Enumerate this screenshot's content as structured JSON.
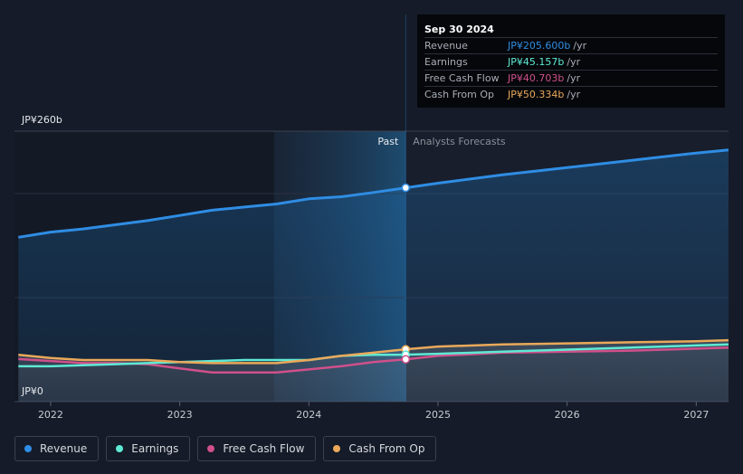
{
  "chart_data": {
    "type": "line",
    "title": "",
    "currency_unit": "JP¥",
    "y_top_label": "JP¥260b",
    "y_bottom_label": "JP¥0",
    "ylim": [
      0,
      260
    ],
    "xlim": [
      2021.72,
      2027.25
    ],
    "x_ticks": [
      "2022",
      "2023",
      "2024",
      "2025",
      "2026",
      "2027"
    ],
    "x_tick_values": [
      2022,
      2023,
      2024,
      2025,
      2026,
      2027
    ],
    "region_labels": {
      "past": "Past",
      "forecast": "Analysts Forecasts"
    },
    "past_start": 2023.73,
    "divider_x": 2024.75,
    "colors": {
      "revenue": "#2f8de4",
      "earnings": "#5eead4",
      "free_cash_flow": "#d0508a",
      "cash_from_op": "#eaa95a"
    },
    "series": [
      {
        "name": "Revenue",
        "key": "revenue",
        "x": [
          2021.75,
          2022.0,
          2022.25,
          2022.5,
          2022.75,
          2023.0,
          2023.25,
          2023.5,
          2023.75,
          2024.0,
          2024.25,
          2024.5,
          2024.75,
          2025.0,
          2025.5,
          2026.0,
          2026.5,
          2027.0,
          2027.25
        ],
        "values": [
          158,
          163,
          166,
          170,
          174,
          179,
          184,
          187,
          190,
          195,
          197,
          201,
          205.6,
          210,
          218,
          225,
          232,
          239,
          242
        ]
      },
      {
        "name": "Earnings",
        "key": "earnings",
        "x": [
          2021.75,
          2022.0,
          2022.25,
          2022.5,
          2022.75,
          2023.0,
          2023.25,
          2023.5,
          2023.75,
          2024.0,
          2024.25,
          2024.5,
          2024.75,
          2025.0,
          2025.5,
          2026.0,
          2026.5,
          2027.0,
          2027.25
        ],
        "values": [
          34,
          34,
          35,
          36,
          37,
          38,
          39,
          40,
          40,
          40,
          44,
          45,
          45.157,
          46,
          48,
          50,
          52,
          54,
          55
        ]
      },
      {
        "name": "Free Cash Flow",
        "key": "free_cash_flow",
        "x": [
          2021.75,
          2022.0,
          2022.25,
          2022.5,
          2022.75,
          2023.0,
          2023.25,
          2023.5,
          2023.75,
          2024.0,
          2024.25,
          2024.5,
          2024.75,
          2025.0,
          2025.5,
          2026.0,
          2026.5,
          2027.0,
          2027.25
        ],
        "values": [
          41,
          39,
          37,
          37,
          36,
          32,
          28,
          28,
          28,
          31,
          34,
          38,
          40.703,
          44,
          47,
          48,
          49,
          51,
          52
        ]
      },
      {
        "name": "Cash From Op",
        "key": "cash_from_op",
        "x": [
          2021.75,
          2022.0,
          2022.25,
          2022.5,
          2022.75,
          2023.0,
          2023.25,
          2023.5,
          2023.75,
          2024.0,
          2024.25,
          2024.5,
          2024.75,
          2025.0,
          2025.5,
          2026.0,
          2026.5,
          2027.0,
          2027.25
        ],
        "values": [
          45,
          42,
          40,
          40,
          40,
          38,
          37,
          37,
          37,
          40,
          44,
          47,
          50.334,
          53,
          55,
          56,
          57,
          58,
          59
        ]
      }
    ],
    "tooltip": {
      "date": "Sep 30 2024",
      "rows": [
        {
          "label": "Revenue",
          "value": "JP¥205.600b",
          "unit": "/yr",
          "color": "#2f8de4"
        },
        {
          "label": "Earnings",
          "value": "JP¥45.157b",
          "unit": "/yr",
          "color": "#5eead4"
        },
        {
          "label": "Free Cash Flow",
          "value": "JP¥40.703b",
          "unit": "/yr",
          "color": "#d0508a"
        },
        {
          "label": "Cash From Op",
          "value": "JP¥50.334b",
          "unit": "/yr",
          "color": "#eaa95a"
        }
      ]
    }
  },
  "legend": {
    "items": [
      {
        "label": "Revenue",
        "color": "#2f8de4"
      },
      {
        "label": "Earnings",
        "color": "#5eead4"
      },
      {
        "label": "Free Cash Flow",
        "color": "#d0508a"
      },
      {
        "label": "Cash From Op",
        "color": "#eaa95a"
      }
    ]
  }
}
